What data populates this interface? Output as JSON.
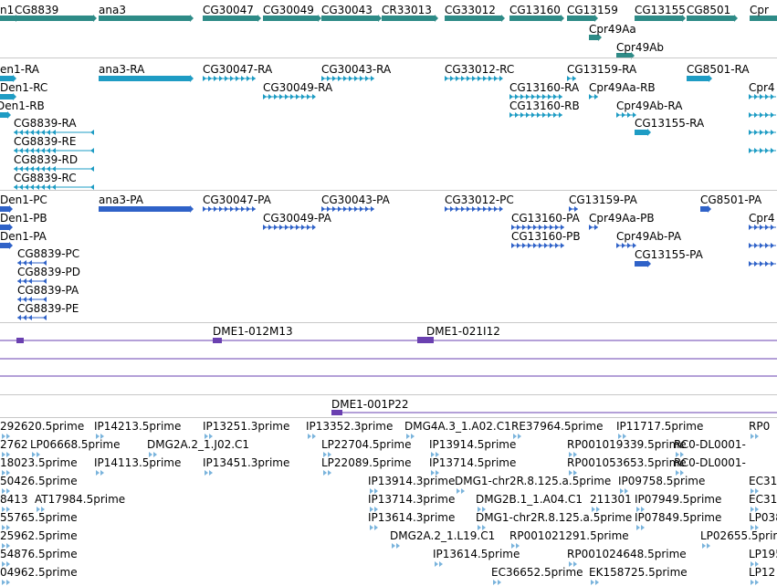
{
  "colors": {
    "gene": "#2e8b87",
    "transcript": "#1e9cc4",
    "protein": "#2f62c8",
    "clone": "#6a40b0",
    "est": "#7ab4dc"
  },
  "genes": [
    {
      "label": "n1"
    },
    {
      "label": "CG8839"
    },
    {
      "label": "ana3"
    },
    {
      "label": "CG30047"
    },
    {
      "label": "CG30049"
    },
    {
      "label": "CG30043"
    },
    {
      "label": "CR33013"
    },
    {
      "label": "CG33012"
    },
    {
      "label": "CG13160"
    },
    {
      "label": "CG13159"
    },
    {
      "label": "CG13155"
    },
    {
      "label": "CG8501"
    },
    {
      "label": "Cpr"
    },
    {
      "label": "Cpr49Aa"
    },
    {
      "label": "Cpr49Ab"
    }
  ],
  "transcripts": [
    {
      "label": "en1-RA"
    },
    {
      "label": "ana3-RA"
    },
    {
      "label": "CG30047-RA"
    },
    {
      "label": "CG30043-RA"
    },
    {
      "label": "CG33012-RC"
    },
    {
      "label": "CG13159-RA"
    },
    {
      "label": "CG8501-RA"
    },
    {
      "label": "Den1-RC"
    },
    {
      "label": "CG30049-RA"
    },
    {
      "label": "CG13160-RA"
    },
    {
      "label": "Cpr49Aa-RB"
    },
    {
      "label": "Den1-RB"
    },
    {
      "label": "CG13160-RB"
    },
    {
      "label": "Cpr49Ab-RA"
    },
    {
      "label": "CG8839-RA"
    },
    {
      "label": "CG13155-RA"
    },
    {
      "label": "CG8839-RE"
    },
    {
      "label": "CG8839-RD"
    },
    {
      "label": "CG8839-RC"
    },
    {
      "label": "Cpr4"
    }
  ],
  "proteins": [
    {
      "label": "Den1-PC"
    },
    {
      "label": "ana3-PA"
    },
    {
      "label": "CG30047-PA"
    },
    {
      "label": "CG30043-PA"
    },
    {
      "label": "CG33012-PC"
    },
    {
      "label": "CG13159-PA"
    },
    {
      "label": "CG8501-PA"
    },
    {
      "label": "Den1-PB"
    },
    {
      "label": "CG30049-PA"
    },
    {
      "label": "CG13160-PA"
    },
    {
      "label": "Cpr49Aa-PB"
    },
    {
      "label": "Cpr4"
    },
    {
      "label": "Den1-PA"
    },
    {
      "label": "CG13160-PB"
    },
    {
      "label": "Cpr49Ab-PA"
    },
    {
      "label": "CG13155-PA"
    },
    {
      "label": "CG8839-PC"
    },
    {
      "label": "CG8839-PD"
    },
    {
      "label": "CG8839-PA"
    },
    {
      "label": "CG8839-PE"
    }
  ],
  "clones": [
    {
      "label": "DME1-012M13"
    },
    {
      "label": "DME1-021I12"
    },
    {
      "label": "DME1-001P22"
    }
  ],
  "ests": [
    {
      "label": "292620.5prime"
    },
    {
      "label": "IP14213.5prime"
    },
    {
      "label": "IP13251.3prime"
    },
    {
      "label": "IP13352.3prime"
    },
    {
      "label": "DMG4A.3_1.A02.C1"
    },
    {
      "label": "RE37964.5prime"
    },
    {
      "label": "IP11717.5prime"
    },
    {
      "label": "RP0"
    },
    {
      "label": "2762"
    },
    {
      "label": "LP06668.5prime"
    },
    {
      "label": "DMG2A.2_1.J02.C1"
    },
    {
      "label": "LP22704.5prime"
    },
    {
      "label": "IP13914.5prime"
    },
    {
      "label": "RP001019339.5prime"
    },
    {
      "label": "RC0-DL0001-"
    },
    {
      "label": "18023.5prime"
    },
    {
      "label": "IP14113.5prime"
    },
    {
      "label": "IP13451.3prime"
    },
    {
      "label": "LP22089.5prime"
    },
    {
      "label": "IP13714.5prime"
    },
    {
      "label": "RP001053653.5prime"
    },
    {
      "label": "RC0-DL0001-"
    },
    {
      "label": "50426.5prime"
    },
    {
      "label": "IP13914.3prime"
    },
    {
      "label": "DMG1-chr2R.8.125.a.5prime"
    },
    {
      "label": "IP09758.5prime"
    },
    {
      "label": "EC31"
    },
    {
      "label": "8413"
    },
    {
      "label": "AT17984.5prime"
    },
    {
      "label": "IP13714.3prime"
    },
    {
      "label": "DMG2B.1_1.A04.C1"
    },
    {
      "label": "211301"
    },
    {
      "label": "IP07949.5prime"
    },
    {
      "label": "EC31"
    },
    {
      "label": "55765.5prime"
    },
    {
      "label": "IP13614.3prime"
    },
    {
      "label": "DMG1-chr2R.8.125.a.5prime"
    },
    {
      "label": "IP07849.5prime"
    },
    {
      "label": "LP038"
    },
    {
      "label": "25962.5prime"
    },
    {
      "label": "DMG2A.2_1.L19.C1"
    },
    {
      "label": "RP001021291.5prime"
    },
    {
      "label": "LP02655.5prime"
    },
    {
      "label": "54876.5prime"
    },
    {
      "label": "IP13614.5prime"
    },
    {
      "label": "RP001024648.5prime"
    },
    {
      "label": "LP195"
    },
    {
      "label": "04962.5prime"
    },
    {
      "label": "EC36652.5prime"
    },
    {
      "label": "EK158725.5prime"
    },
    {
      "label": "LP12"
    }
  ]
}
